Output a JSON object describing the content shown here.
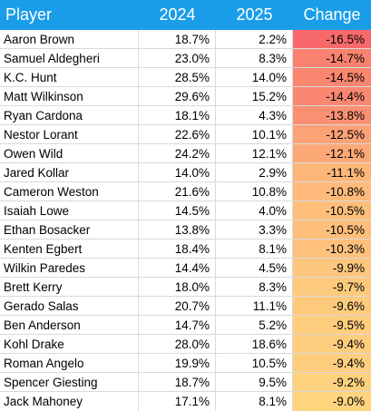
{
  "chart_data": {
    "type": "table",
    "columns": [
      "Player",
      "2024",
      "2025",
      "Change"
    ],
    "rows": [
      {
        "player": "Aaron Brown",
        "y2024": "18.7%",
        "y2025": "2.2%",
        "change": "-16.5%",
        "change_value": -16.5
      },
      {
        "player": "Samuel Aldegheri",
        "y2024": "23.0%",
        "y2025": "8.3%",
        "change": "-14.7%",
        "change_value": -14.7
      },
      {
        "player": "K.C. Hunt",
        "y2024": "28.5%",
        "y2025": "14.0%",
        "change": "-14.5%",
        "change_value": -14.5
      },
      {
        "player": "Matt Wilkinson",
        "y2024": "29.6%",
        "y2025": "15.2%",
        "change": "-14.4%",
        "change_value": -14.4
      },
      {
        "player": "Ryan Cardona",
        "y2024": "18.1%",
        "y2025": "4.3%",
        "change": "-13.8%",
        "change_value": -13.8
      },
      {
        "player": "Nestor Lorant",
        "y2024": "22.6%",
        "y2025": "10.1%",
        "change": "-12.5%",
        "change_value": -12.5
      },
      {
        "player": "Owen Wild",
        "y2024": "24.2%",
        "y2025": "12.1%",
        "change": "-12.1%",
        "change_value": -12.1
      },
      {
        "player": "Jared Kollar",
        "y2024": "14.0%",
        "y2025": "2.9%",
        "change": "-11.1%",
        "change_value": -11.1
      },
      {
        "player": "Cameron Weston",
        "y2024": "21.6%",
        "y2025": "10.8%",
        "change": "-10.8%",
        "change_value": -10.8
      },
      {
        "player": "Isaiah Lowe",
        "y2024": "14.5%",
        "y2025": "4.0%",
        "change": "-10.5%",
        "change_value": -10.5
      },
      {
        "player": "Ethan Bosacker",
        "y2024": "13.8%",
        "y2025": "3.3%",
        "change": "-10.5%",
        "change_value": -10.5
      },
      {
        "player": "Kenten Egbert",
        "y2024": "18.4%",
        "y2025": "8.1%",
        "change": "-10.3%",
        "change_value": -10.3
      },
      {
        "player": "Wilkin Paredes",
        "y2024": "14.4%",
        "y2025": "4.5%",
        "change": "-9.9%",
        "change_value": -9.9
      },
      {
        "player": "Brett Kerry",
        "y2024": "18.0%",
        "y2025": "8.3%",
        "change": "-9.7%",
        "change_value": -9.7
      },
      {
        "player": "Gerado Salas",
        "y2024": "20.7%",
        "y2025": "11.1%",
        "change": "-9.6%",
        "change_value": -9.6
      },
      {
        "player": "Ben Anderson",
        "y2024": "14.7%",
        "y2025": "5.2%",
        "change": "-9.5%",
        "change_value": -9.5
      },
      {
        "player": "Kohl Drake",
        "y2024": "28.0%",
        "y2025": "18.6%",
        "change": "-9.4%",
        "change_value": -9.4
      },
      {
        "player": "Roman Angelo",
        "y2024": "19.9%",
        "y2025": "10.5%",
        "change": "-9.4%",
        "change_value": -9.4
      },
      {
        "player": "Spencer Giesting",
        "y2024": "18.7%",
        "y2025": "9.5%",
        "change": "-9.2%",
        "change_value": -9.2
      },
      {
        "player": "Jack Mahoney",
        "y2024": "17.1%",
        "y2025": "8.1%",
        "change": "-9.0%",
        "change_value": -9.0
      }
    ]
  },
  "colors": {
    "header_bg": "#1a9de8",
    "header_text": "#ffffff",
    "scale_low": "#f8696b",
    "scale_high": "#fed47f"
  }
}
